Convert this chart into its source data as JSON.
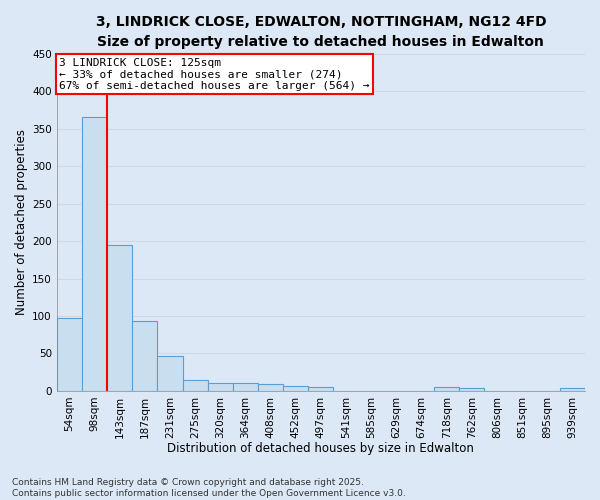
{
  "title_line1": "3, LINDRICK CLOSE, EDWALTON, NOTTINGHAM, NG12 4FD",
  "title_line2": "Size of property relative to detached houses in Edwalton",
  "xlabel": "Distribution of detached houses by size in Edwalton",
  "ylabel": "Number of detached properties",
  "footer_line1": "Contains HM Land Registry data © Crown copyright and database right 2025.",
  "footer_line2": "Contains public sector information licensed under the Open Government Licence v3.0.",
  "categories": [
    "54sqm",
    "98sqm",
    "143sqm",
    "187sqm",
    "231sqm",
    "275sqm",
    "320sqm",
    "364sqm",
    "408sqm",
    "452sqm",
    "497sqm",
    "541sqm",
    "585sqm",
    "629sqm",
    "674sqm",
    "718sqm",
    "762sqm",
    "806sqm",
    "851sqm",
    "895sqm",
    "939sqm"
  ],
  "values": [
    97,
    365,
    195,
    93,
    46,
    14,
    10,
    11,
    9,
    6,
    5,
    0,
    0,
    0,
    0,
    5,
    4,
    0,
    0,
    0,
    4
  ],
  "bar_color": "#c9dff0",
  "bar_edge_color": "#5a9fd4",
  "bar_linewidth": 0.8,
  "grid_color": "#d0d8e8",
  "background_color": "#dce8f5",
  "property_line_color": "red",
  "annotation_line1": "3 LINDRICK CLOSE: 125sqm",
  "annotation_line2": "← 33% of detached houses are smaller (274)",
  "annotation_line3": "67% of semi-detached houses are larger (564) →",
  "annotation_box_color": "white",
  "annotation_box_edge_color": "red",
  "ylim": [
    0,
    450
  ],
  "yticks": [
    0,
    50,
    100,
    150,
    200,
    250,
    300,
    350,
    400,
    450
  ],
  "title_fontsize": 10,
  "subtitle_fontsize": 9,
  "axis_label_fontsize": 8.5,
  "tick_fontsize": 7.5,
  "annotation_fontsize": 8,
  "footer_fontsize": 6.5
}
